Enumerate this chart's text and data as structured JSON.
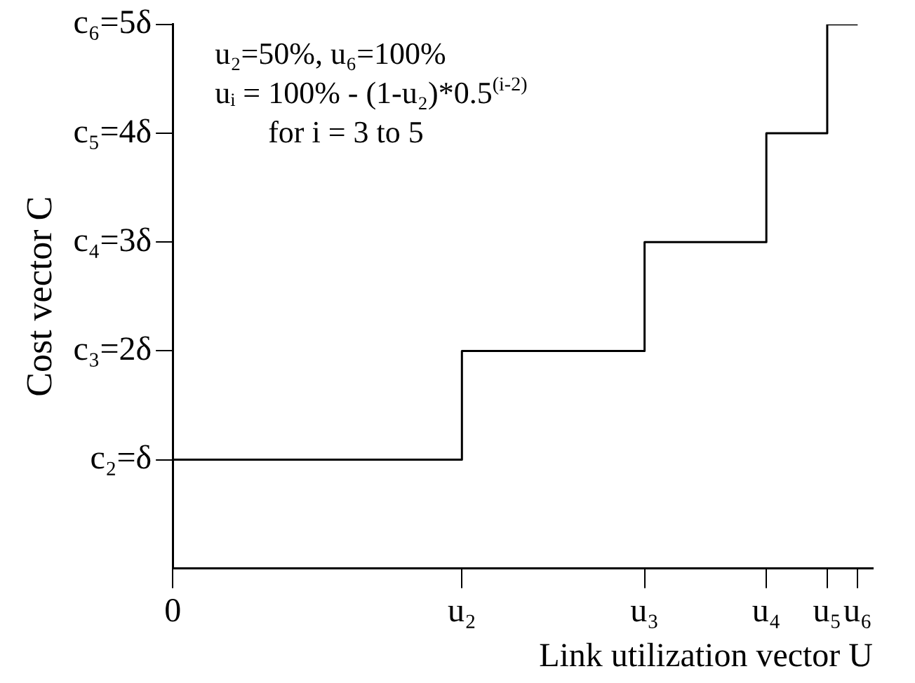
{
  "chart_data": {
    "type": "step",
    "xlabel": "Link utilization vector U",
    "ylabel": "Cost vector C",
    "categories": [
      "0",
      null,
      null,
      null,
      null,
      null,
      null,
      null,
      null,
      null,
      null,
      null,
      null,
      null,
      null,
      null,
      null,
      null,
      null,
      "u₂",
      null,
      null,
      null,
      null,
      null,
      null,
      null,
      null,
      null,
      null,
      null,
      "u₃",
      null,
      null,
      null,
      null,
      null,
      null,
      null,
      "u₄",
      null,
      null,
      null,
      "u₅",
      null,
      "u₆",
      null
    ],
    "series": [
      {
        "color": "#000000",
        "values": [
          1,
          null,
          null,
          null,
          null,
          null,
          null,
          null,
          null,
          null,
          null,
          null,
          null,
          null,
          null,
          null,
          null,
          null,
          null,
          2,
          null,
          null,
          null,
          null,
          null,
          null,
          null,
          null,
          null,
          null,
          null,
          3,
          null,
          null,
          null,
          null,
          null,
          null,
          null,
          4,
          null,
          null,
          null,
          5,
          null,
          5,
          null
        ]
      }
    ],
    "ylim": [
      0,
      5
    ],
    "yticks": [
      {
        "value": 1,
        "label": "c₂=δ"
      },
      {
        "value": 2,
        "label": "c₃=2δ"
      },
      {
        "value": 3,
        "label": "c₄=3δ"
      },
      {
        "value": 4,
        "label": "c₅=4δ"
      },
      {
        "value": 5,
        "label": "c₆=5δ"
      }
    ],
    "annotations": [
      "u₂=50%, u₆=100%",
      "uᵢ = 100% - (1-u₂)*0.5$^{(i-2)}$",
      "for i = 3 to 5"
    ],
    "grid": false,
    "legend": false,
    "marker": "none",
    "line_style": "solid"
  }
}
